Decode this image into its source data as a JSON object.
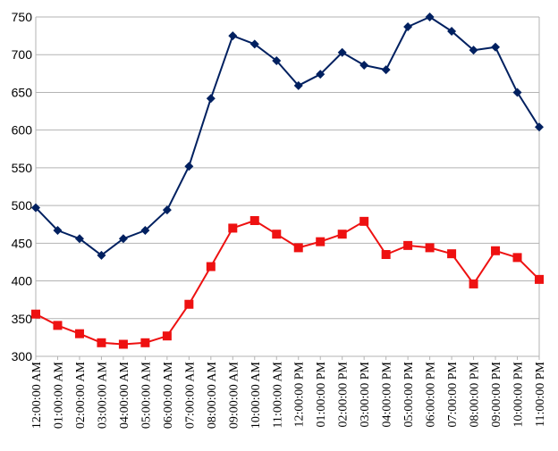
{
  "chart_data": {
    "type": "line",
    "title": "",
    "xlabel": "",
    "ylabel": "",
    "ylim": [
      300,
      750
    ],
    "yticks": [
      300,
      350,
      400,
      450,
      500,
      550,
      600,
      650,
      700,
      750
    ],
    "grid": "horizontal",
    "legend": "none",
    "categories": [
      "12:00:00 AM",
      "01:00:00 AM",
      "02:00:00 AM",
      "03:00:00 AM",
      "04:00:00 AM",
      "05:00:00 AM",
      "06:00:00 AM",
      "07:00:00 AM",
      "08:00:00 AM",
      "09:00:00 AM",
      "10:00:00 AM",
      "11:00:00 AM",
      "12:00:00 PM",
      "01:00:00 PM",
      "02:00:00 PM",
      "03:00:00 PM",
      "04:00:00 PM",
      "05:00:00 PM",
      "06:00:00 PM",
      "07:00:00 PM",
      "08:00:00 PM",
      "09:00:00 PM",
      "10:00:00 PM",
      "11:00:00 PM"
    ],
    "series": [
      {
        "color": "#002060",
        "marker": "diamond",
        "values": [
          497,
          467,
          456,
          434,
          456,
          467,
          494,
          552,
          642,
          725,
          714,
          692,
          659,
          674,
          703,
          686,
          680,
          737,
          750,
          731,
          706,
          710,
          650,
          604
        ]
      },
      {
        "color": "#ee1111",
        "marker": "square",
        "values": [
          356,
          341,
          330,
          318,
          316,
          318,
          327,
          369,
          419,
          470,
          480,
          462,
          444,
          452,
          462,
          479,
          435,
          447,
          444,
          436,
          396,
          440,
          431,
          402
        ]
      }
    ]
  }
}
